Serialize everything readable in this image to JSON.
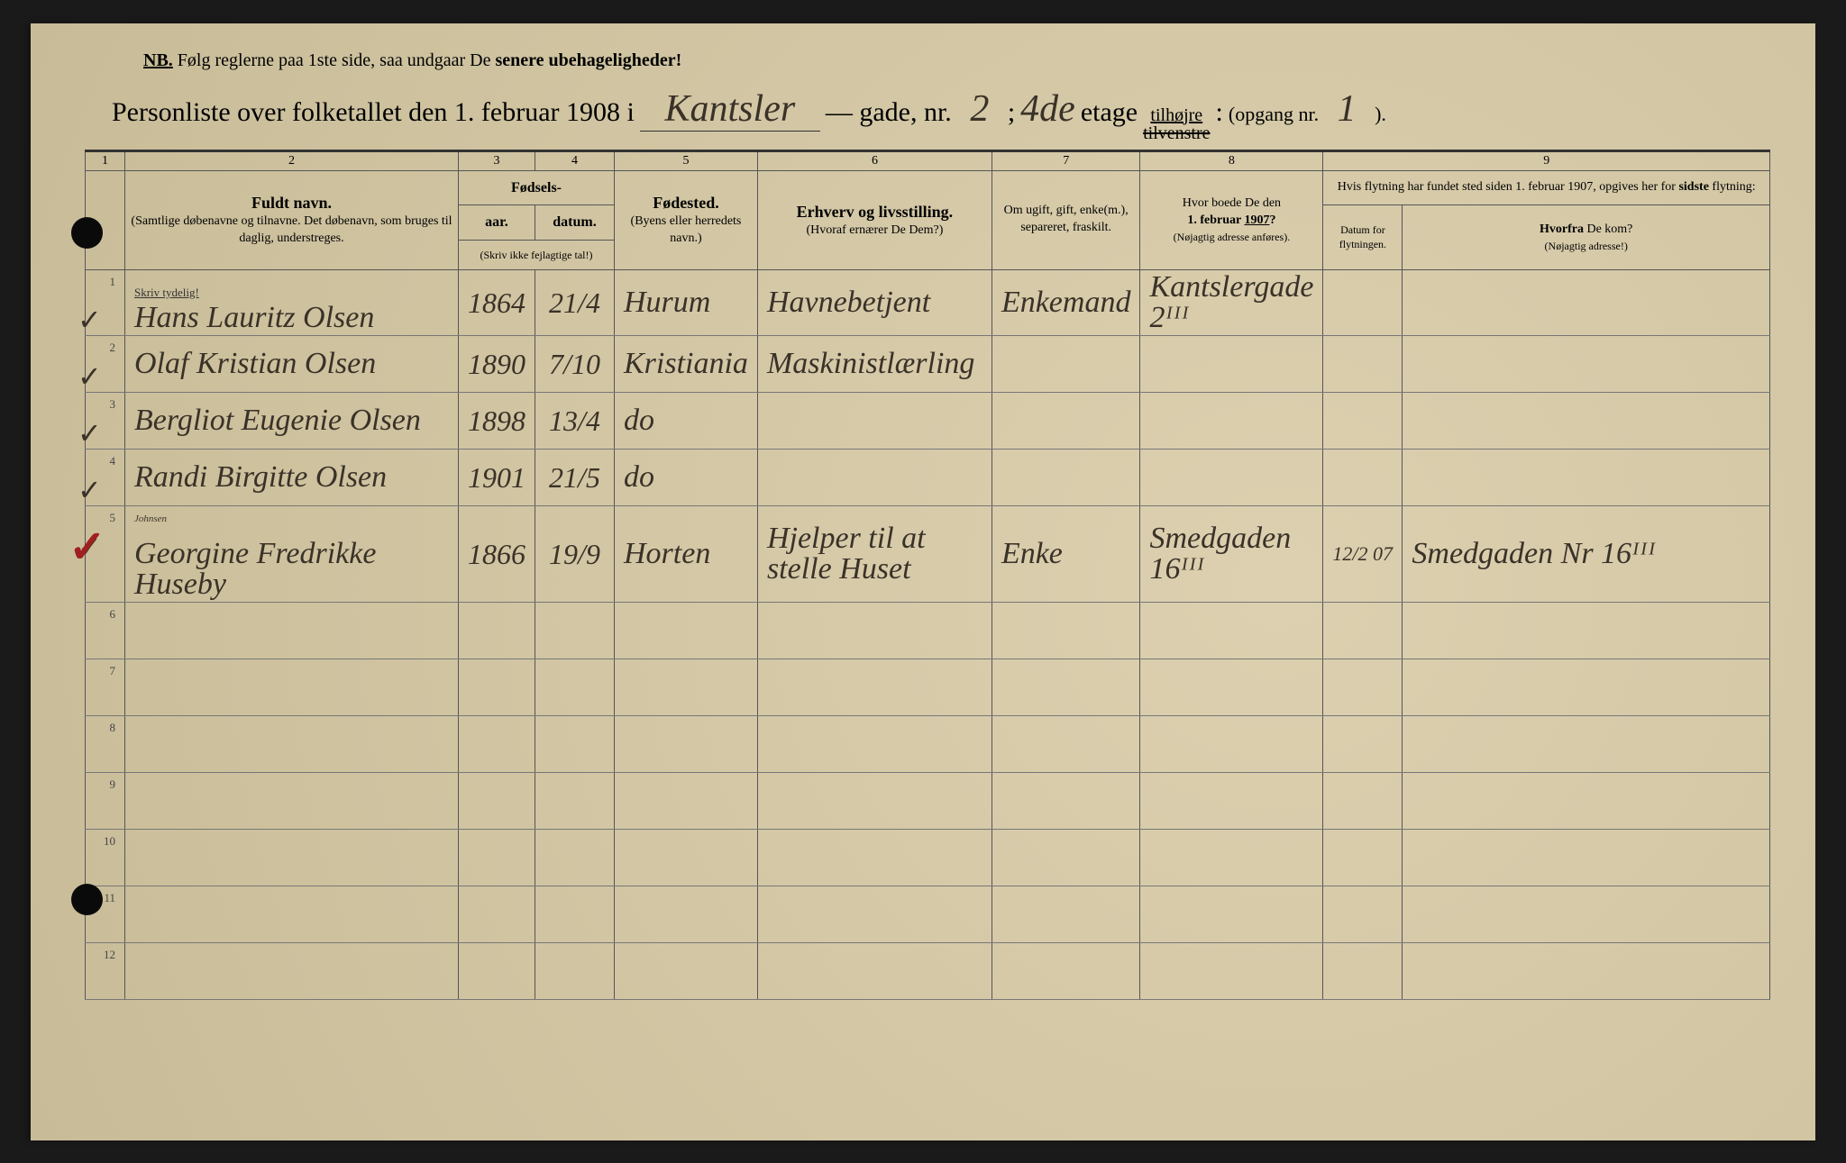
{
  "colors": {
    "paper": "#d4c8a8",
    "ink": "#333333",
    "handwriting": "#3a3228",
    "red": "#a02020",
    "background": "#1a1a1a"
  },
  "header": {
    "nb_label": "NB.",
    "nb_text_1": "Følg reglerne paa 1ste side, saa undgaar De ",
    "nb_text_bold": "senere ubehageligheder!",
    "title_prefix": "Personliste over folketallet den 1. februar 1908 i",
    "street": "Kantsler",
    "gade_label": "— gade, nr.",
    "street_nr": "2",
    "semicolon": ";",
    "floor": "4de",
    "etage_label": "etage",
    "side_right": "tilhøjre",
    "side_left_struck": "tilvenstre",
    "colon": ":",
    "opgang_label": "(opgang nr.",
    "entrance_nr": "1",
    "close": ")."
  },
  "column_numbers": [
    "1",
    "2",
    "3",
    "4",
    "5",
    "6",
    "7",
    "8",
    "9"
  ],
  "columns": {
    "c2_title": "Fuldt navn.",
    "c2_sub": "(Samtlige døbenavne og tilnavne. Det døbenavn, som bruges til daglig, understreges.",
    "c34_group": "Fødsels-",
    "c3": "aar.",
    "c4": "datum.",
    "c34_note": "(Skriv ikke fejlagtige tal!)",
    "c5_title": "Fødested.",
    "c5_sub": "(Byens eller herredets navn.)",
    "c6_title": "Erhverv og livsstilling.",
    "c6_sub": "(Hvoraf ernærer De Dem?)",
    "c7": "Om ugift, gift, enke(m.), separeret, fraskilt.",
    "c8_title": "Hvor boede De den 1. februar 1907?",
    "c8_sub": "(Nøjagtig adresse anføres).",
    "c9_top": "Hvis flytning har fundet sted siden 1. februar 1907, opgives her for sidste flytning:",
    "c9a": "Datum for flytningen.",
    "c9b_title": "Hvorfra De kom?",
    "c9b_sub": "(Nøjagtig adresse!)",
    "instr_row2": "Skriv tydelig!"
  },
  "rows": [
    {
      "n": "1",
      "check": "✓",
      "name": "Hans Lauritz Olsen",
      "year": "1864",
      "date": "21/4",
      "place": "Hurum",
      "occupation": "Havnebetjent",
      "status": "Enkemand",
      "addr1907": "Kantslergade 2ᴵᴵᴵ",
      "moved": "",
      "from": ""
    },
    {
      "n": "2",
      "check": "✓",
      "name": "Olaf Kristian Olsen",
      "year": "1890",
      "date": "7/10",
      "place": "Kristiania",
      "occupation": "Maskinistlærling",
      "status": "",
      "addr1907": "",
      "moved": "",
      "from": ""
    },
    {
      "n": "3",
      "check": "✓",
      "name": "Bergliot Eugenie Olsen",
      "year": "1898",
      "date": "13/4",
      "place": "do",
      "occupation": "",
      "status": "",
      "addr1907": "",
      "moved": "",
      "from": ""
    },
    {
      "n": "4",
      "check": "✓",
      "name": "Randi Birgitte Olsen",
      "year": "1901",
      "date": "21/5",
      "place": "do",
      "occupation": "",
      "status": "",
      "addr1907": "",
      "moved": "",
      "from": ""
    },
    {
      "n": "5",
      "check": "✓",
      "red": true,
      "name": "Georgine Fredrikke Huseby",
      "annotation": "Johnsen",
      "year": "1866",
      "date": "19/9",
      "place": "Horten",
      "occupation": "Hjelper til at stelle Huset",
      "status": "Enke",
      "addr1907": "Smedgaden 16ᴵᴵᴵ",
      "moved": "12/2 07",
      "from": "Smedgaden Nr 16ᴵᴵᴵ"
    },
    {
      "n": "6",
      "name": "",
      "year": "",
      "date": "",
      "place": "",
      "occupation": "",
      "status": "",
      "addr1907": "",
      "moved": "",
      "from": ""
    },
    {
      "n": "7",
      "name": "",
      "year": "",
      "date": "",
      "place": "",
      "occupation": "",
      "status": "",
      "addr1907": "",
      "moved": "",
      "from": ""
    },
    {
      "n": "8",
      "name": "",
      "year": "",
      "date": "",
      "place": "",
      "occupation": "",
      "status": "",
      "addr1907": "",
      "moved": "",
      "from": ""
    },
    {
      "n": "9",
      "name": "",
      "year": "",
      "date": "",
      "place": "",
      "occupation": "",
      "status": "",
      "addr1907": "",
      "moved": "",
      "from": ""
    },
    {
      "n": "10",
      "name": "",
      "year": "",
      "date": "",
      "place": "",
      "occupation": "",
      "status": "",
      "addr1907": "",
      "moved": "",
      "from": ""
    },
    {
      "n": "11",
      "name": "",
      "year": "",
      "date": "",
      "place": "",
      "occupation": "",
      "status": "",
      "addr1907": "",
      "moved": "",
      "from": ""
    },
    {
      "n": "12",
      "name": "",
      "year": "",
      "date": "",
      "place": "",
      "occupation": "",
      "status": "",
      "addr1907": "",
      "moved": "",
      "from": ""
    }
  ]
}
